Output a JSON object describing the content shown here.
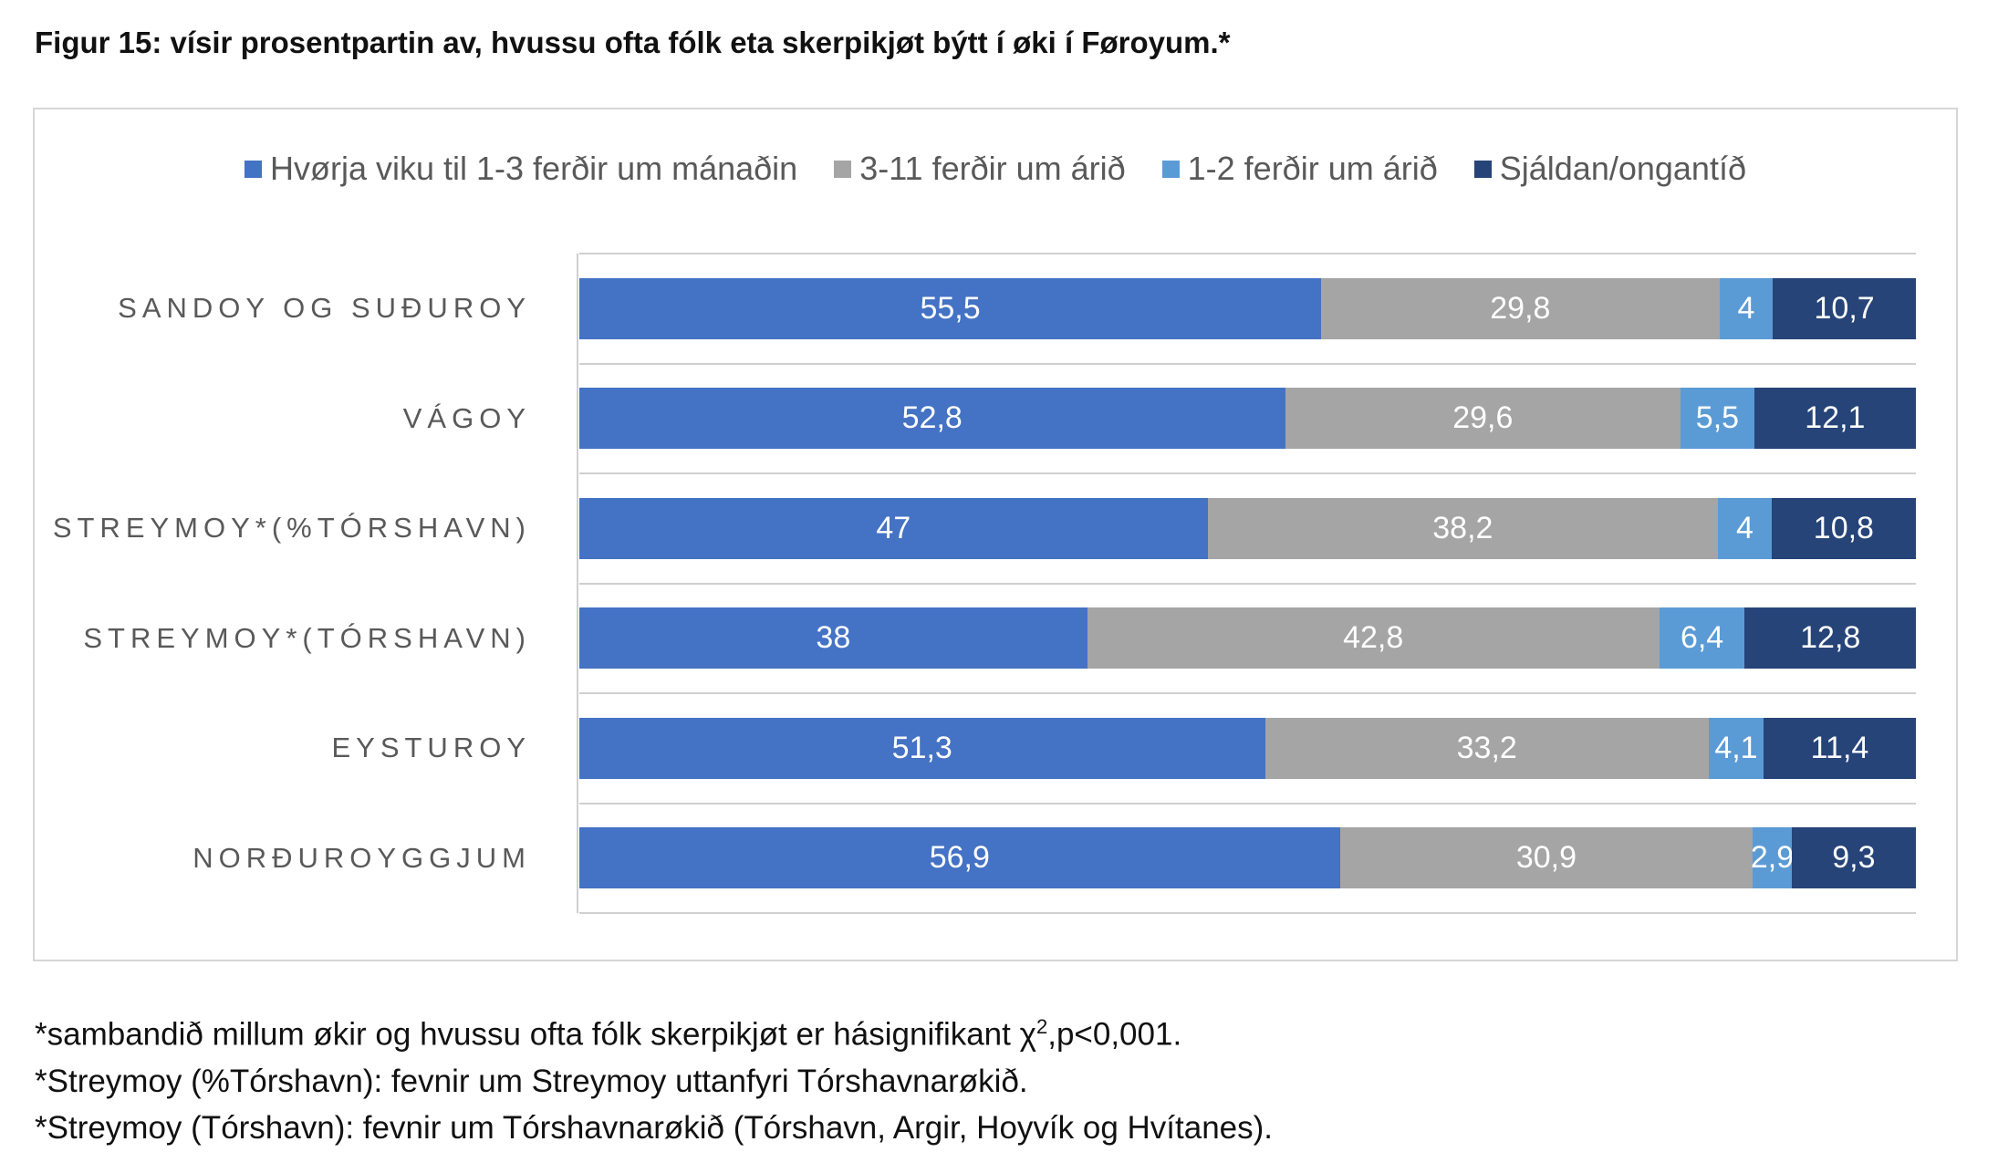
{
  "figure": {
    "title": "Figur 15: vísir prosentpartin av, hvussu ofta fólk eta skerpikjøt býtt í øki í Føroyum.*"
  },
  "colors": {
    "series": [
      "#4472c4",
      "#a5a5a5",
      "#5b9bd5",
      "#264478"
    ],
    "grid": "#d0d0d0",
    "label_text": "#595959"
  },
  "chart_data": {
    "type": "bar",
    "orientation": "horizontal",
    "stacked": true,
    "percent": true,
    "legend_position": "top",
    "grid": true,
    "xlim": [
      0,
      100
    ],
    "categories": [
      "SANDOY OG SUÐUROY",
      "VÁGOY",
      "STREYMOY*(%TÓRSHAVN)",
      "STREYMOY*(TÓRSHAVN)",
      "EYSTUROY",
      "NORÐUROYGGJUM"
    ],
    "series": [
      {
        "name": "Hvørja viku til 1-3 ferðir um mánaðin",
        "values": [
          55.5,
          52.8,
          47,
          38,
          51.3,
          56.9
        ],
        "labels": [
          "55,5",
          "52,8",
          "47",
          "38",
          "51,3",
          "56,9"
        ]
      },
      {
        "name": "3-11 ferðir um árið",
        "values": [
          29.8,
          29.6,
          38.2,
          42.8,
          33.2,
          30.9
        ],
        "labels": [
          "29,8",
          "29,6",
          "38,2",
          "42,8",
          "33,2",
          "30,9"
        ]
      },
      {
        "name": "1-2 ferðir um árið",
        "values": [
          4,
          5.5,
          4,
          6.4,
          4.1,
          2.9
        ],
        "labels": [
          "4",
          "5,5",
          "4",
          "6,4",
          "4,1",
          "2,9"
        ]
      },
      {
        "name": "Sjáldan/ongantíð",
        "values": [
          10.7,
          12.1,
          10.8,
          12.8,
          11.4,
          9.3
        ],
        "labels": [
          "10,7",
          "12,1",
          "10,8",
          "12,8",
          "11,4",
          "9,3"
        ]
      }
    ]
  },
  "notes": {
    "line1_main": "*sambandið millum økir og hvussu ofta fólk skerpikjøt er hásignifikant χ",
    "line1_sup": "2",
    "line1_end": ",p<0,001.",
    "line2": "*Streymoy (%Tórshavn): fevnir um Streymoy uttanfyri Tórshavnarøkið.",
    "line3": "*Streymoy (Tórshavn): fevnir um Tórshavnarøkið (Tórshavn, Argir, Hoyvík og Hvítanes)."
  }
}
